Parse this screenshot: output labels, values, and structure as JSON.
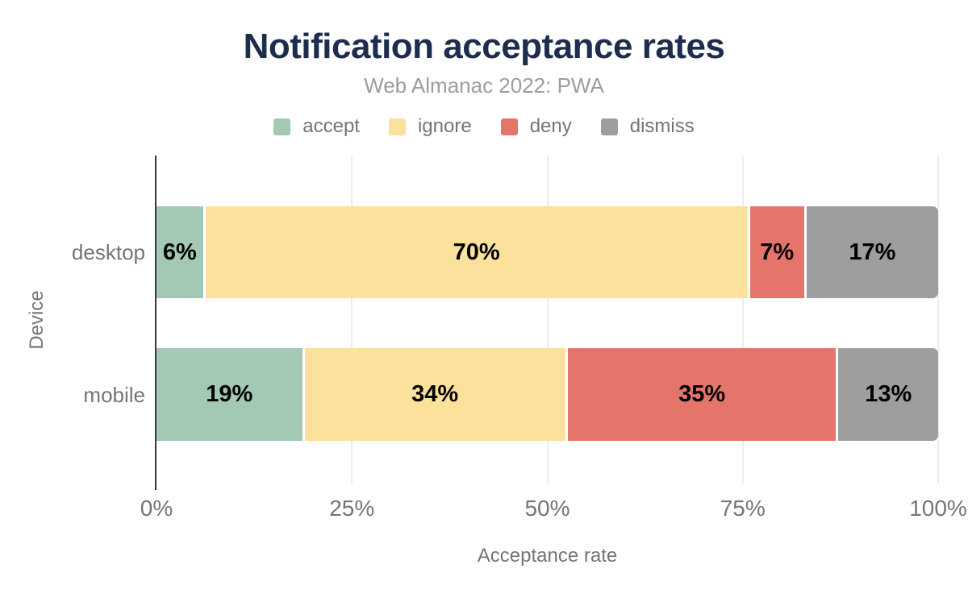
{
  "chart_data": {
    "type": "bar",
    "stacked": true,
    "orientation": "horizontal",
    "title": "Notification acceptance rates",
    "subtitle": "Web Almanac 2022: PWA",
    "categories": [
      "desktop",
      "mobile"
    ],
    "series": [
      {
        "name": "accept",
        "color": "#a3c9b5",
        "values": [
          6,
          19
        ],
        "labels": [
          "6%",
          "19%"
        ]
      },
      {
        "name": "ignore",
        "color": "#fce19c",
        "values": [
          70,
          34
        ],
        "labels": [
          "70%",
          "34%"
        ]
      },
      {
        "name": "deny",
        "color": "#e5746b",
        "values": [
          7,
          35
        ],
        "labels": [
          "7%",
          "35%"
        ]
      },
      {
        "name": "dismiss",
        "color": "#9e9e9e",
        "values": [
          17,
          13
        ],
        "labels": [
          "17%",
          "13%"
        ]
      }
    ],
    "xlabel": "Acceptance rate",
    "ylabel": "Device",
    "xlim": [
      0,
      100
    ],
    "x_ticks": [
      {
        "label": "0%",
        "value": 0
      },
      {
        "label": "25%",
        "value": 25
      },
      {
        "label": "50%",
        "value": 50
      },
      {
        "label": "75%",
        "value": 75
      },
      {
        "label": "100%",
        "value": 100
      }
    ],
    "grid": "vertical",
    "legend_position": "top",
    "colors": {
      "title": "#1e2c4e",
      "subtitle": "#9b9da1",
      "axis_text": "#757575",
      "value_label": "#000000",
      "axis_line": "#39383d",
      "gridline": "#ececf2",
      "background": "#ffffff"
    }
  }
}
